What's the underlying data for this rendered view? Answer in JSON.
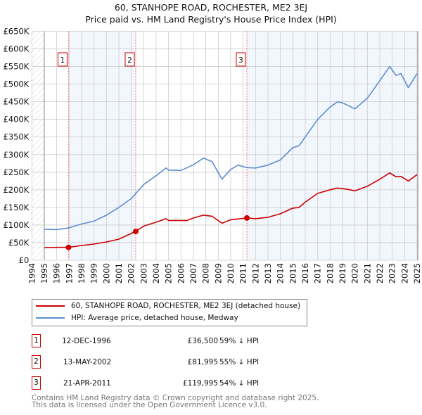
{
  "chart_data": {
    "type": "line",
    "title": "60, STANHOPE ROAD, ROCHESTER, ME2 3EJ",
    "subtitle": "Price paid vs. HM Land Registry's House Price Index (HPI)",
    "xlim": [
      1994,
      2025
    ],
    "ylim": [
      0,
      650000
    ],
    "y_ticks": [
      0,
      50000,
      100000,
      150000,
      200000,
      250000,
      300000,
      350000,
      400000,
      450000,
      500000,
      550000,
      600000,
      650000
    ],
    "y_tick_labels": [
      "£0",
      "£50K",
      "£100K",
      "£150K",
      "£200K",
      "£250K",
      "£300K",
      "£350K",
      "£400K",
      "£450K",
      "£500K",
      "£550K",
      "£600K",
      "£650K"
    ],
    "x_ticks": [
      1994,
      1995,
      1996,
      1997,
      1998,
      1999,
      2000,
      2001,
      2002,
      2003,
      2004,
      2005,
      2006,
      2007,
      2008,
      2009,
      2010,
      2011,
      2012,
      2013,
      2014,
      2015,
      2016,
      2017,
      2018,
      2019,
      2020,
      2021,
      2022,
      2023,
      2024,
      2025
    ],
    "grid": true,
    "series": [
      {
        "name": "60, STANHOPE ROAD, ROCHESTER, ME2 3EJ (detached house)",
        "color": "#cc0000",
        "x": [
          1995,
          1996,
          1996.95,
          1998,
          1999,
          2000,
          2001,
          2002.36,
          2003,
          2004,
          2004.8,
          2005,
          2006.5,
          2007,
          2007.8,
          2008.5,
          2009.3,
          2010,
          2011.3,
          2012,
          2013,
          2014,
          2015,
          2015.5,
          2016,
          2017,
          2018,
          2018.6,
          2019.3,
          2020,
          2021,
          2022,
          2022.8,
          2023.3,
          2023.7,
          2024.3,
          2025
        ],
        "y": [
          36000,
          36500,
          36500,
          42000,
          46000,
          52000,
          60000,
          81995,
          97000,
          108000,
          118000,
          113000,
          113000,
          120000,
          128000,
          125000,
          105000,
          115000,
          119995,
          118000,
          122000,
          132000,
          148000,
          150000,
          165000,
          190000,
          200000,
          205000,
          202000,
          197000,
          210000,
          230000,
          248000,
          237000,
          238000,
          225000,
          243000
        ]
      },
      {
        "name": "HPI: Average price, detached house, Medway",
        "color": "#5b8fd1",
        "x": [
          1995,
          1996,
          1997,
          1998,
          1999,
          2000,
          2001,
          2002,
          2002.5,
          2003,
          2004,
          2004.8,
          2005,
          2006,
          2007,
          2007.8,
          2008.5,
          2009.3,
          2010,
          2010.6,
          2011.3,
          2012,
          2013,
          2014,
          2015,
          2015.5,
          2016,
          2017,
          2018,
          2018.6,
          2019,
          2020,
          2021,
          2022,
          2022.8,
          2023.3,
          2023.7,
          2024.3,
          2025
        ],
        "y": [
          88000,
          87000,
          92000,
          103000,
          111000,
          128000,
          150000,
          175000,
          195000,
          215000,
          240000,
          262000,
          256000,
          255000,
          271000,
          290000,
          280000,
          230000,
          258000,
          270000,
          263000,
          262000,
          270000,
          285000,
          320000,
          325000,
          350000,
          400000,
          435000,
          450000,
          447000,
          430000,
          460000,
          510000,
          550000,
          525000,
          530000,
          490000,
          530000
        ]
      }
    ],
    "sales": [
      {
        "label": "1",
        "x": 1996.95,
        "y": 36500,
        "date": "12-DEC-1996",
        "price": "£36,500",
        "hpi": "59% ↓ HPI"
      },
      {
        "label": "2",
        "x": 2002.36,
        "y": 81995,
        "date": "13-MAY-2002",
        "price": "£81,995",
        "hpi": "55% ↓ HPI"
      },
      {
        "label": "3",
        "x": 2011.3,
        "y": 119995,
        "date": "21-APR-2011",
        "price": "£119,995",
        "hpi": "54% ↓ HPI"
      }
    ],
    "legend_placement": "bottom"
  },
  "footer": {
    "line1": "Contains HM Land Registry data © Crown copyright and database right 2025.",
    "line2": "This data is licensed under the Open Government Licence v3.0."
  }
}
